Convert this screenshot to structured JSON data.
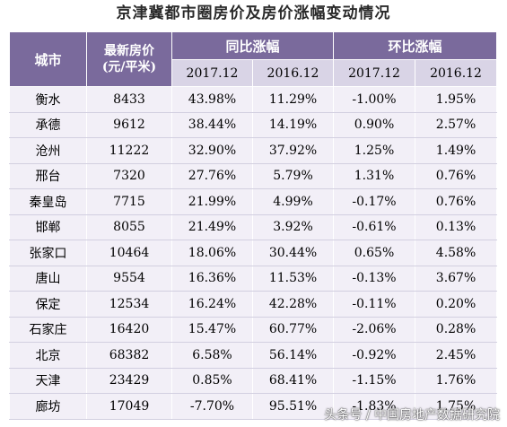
{
  "title": "京津冀都市圈房价及房价涨幅变动情况",
  "headers": {
    "city": "城市",
    "price_line1": "最新房价",
    "price_line2": "(元/平米)",
    "yoy": "同比涨幅",
    "mom": "环比涨幅",
    "yoy_2017": "2017.12",
    "yoy_2016": "2016.12",
    "mom_2017": "2017.12",
    "mom_2016": "2016.12"
  },
  "rows": [
    {
      "city": "衡水",
      "price": "8433",
      "yoy_2017": "43.98%",
      "yoy_2016": "11.29%",
      "mom_2017": "-1.00%",
      "mom_2016": "1.95%"
    },
    {
      "city": "承德",
      "price": "9612",
      "yoy_2017": "38.44%",
      "yoy_2016": "14.19%",
      "mom_2017": "0.90%",
      "mom_2016": "2.57%"
    },
    {
      "city": "沧州",
      "price": "11222",
      "yoy_2017": "32.90%",
      "yoy_2016": "37.92%",
      "mom_2017": "1.25%",
      "mom_2016": "1.49%"
    },
    {
      "city": "邢台",
      "price": "7320",
      "yoy_2017": "27.76%",
      "yoy_2016": "5.79%",
      "mom_2017": "1.31%",
      "mom_2016": "0.76%"
    },
    {
      "city": "秦皇岛",
      "price": "7715",
      "yoy_2017": "21.99%",
      "yoy_2016": "4.99%",
      "mom_2017": "-0.17%",
      "mom_2016": "0.76%"
    },
    {
      "city": "邯郸",
      "price": "8055",
      "yoy_2017": "21.49%",
      "yoy_2016": "3.92%",
      "mom_2017": "-0.61%",
      "mom_2016": "0.13%"
    },
    {
      "city": "张家口",
      "price": "10464",
      "yoy_2017": "18.06%",
      "yoy_2016": "30.44%",
      "mom_2017": "0.65%",
      "mom_2016": "4.58%"
    },
    {
      "city": "唐山",
      "price": "9554",
      "yoy_2017": "16.36%",
      "yoy_2016": "11.53%",
      "mom_2017": "-0.13%",
      "mom_2016": "3.67%"
    },
    {
      "city": "保定",
      "price": "12534",
      "yoy_2017": "16.24%",
      "yoy_2016": "42.28%",
      "mom_2017": "-0.11%",
      "mom_2016": "0.20%"
    },
    {
      "city": "石家庄",
      "price": "16420",
      "yoy_2017": "15.47%",
      "yoy_2016": "60.77%",
      "mom_2017": "-2.06%",
      "mom_2016": "0.28%"
    },
    {
      "city": "北京",
      "price": "68382",
      "yoy_2017": "6.58%",
      "yoy_2016": "56.14%",
      "mom_2017": "-0.92%",
      "mom_2016": "2.45%"
    },
    {
      "city": "天津",
      "price": "23429",
      "yoy_2017": "0.85%",
      "yoy_2016": "68.41%",
      "mom_2017": "-1.15%",
      "mom_2016": "1.76%"
    },
    {
      "city": "廊坊",
      "price": "17049",
      "yoy_2017": "-7.70%",
      "yoy_2016": "95.51%",
      "mom_2017": "-1.83%",
      "mom_2016": "1.75%"
    }
  ],
  "watermark": "头条号 / 中国房地产数据研究院",
  "colors": {
    "header_dark": "#7a6a9c",
    "header_light": "#d9d4e6",
    "row_bg": "#f2eff7"
  }
}
